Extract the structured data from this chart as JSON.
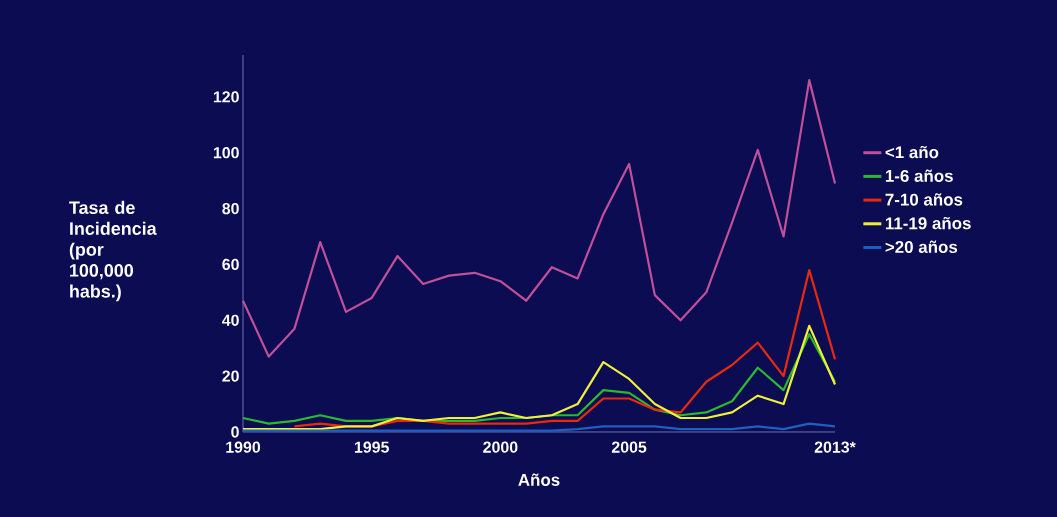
{
  "chart_data": {
    "type": "line",
    "xlabel": "Años",
    "ylabel": "Tasa de Incidencia (por 100,000 habs.)",
    "x": [
      1990,
      1991,
      1992,
      1993,
      1994,
      1995,
      1996,
      1997,
      1998,
      1999,
      2000,
      2001,
      2002,
      2003,
      2004,
      2005,
      2006,
      2007,
      2008,
      2009,
      2010,
      2011,
      2012,
      2013
    ],
    "series": [
      {
        "name": "<1 año",
        "color": "#c0509a",
        "values": [
          47,
          27,
          37,
          68,
          43,
          48,
          63,
          53,
          56,
          57,
          54,
          47,
          59,
          55,
          78,
          96,
          49,
          40,
          50,
          75,
          101,
          70,
          126,
          89
        ]
      },
      {
        "name": "1-6 años",
        "color": "#2db82d",
        "values": [
          5,
          3,
          4,
          6,
          4,
          4,
          5,
          4,
          4,
          4,
          5,
          5,
          6,
          6,
          15,
          14,
          8,
          6,
          7,
          11,
          23,
          15,
          35,
          18
        ]
      },
      {
        "name": "7-10 años",
        "color": "#e82a0c",
        "values": [
          null,
          null,
          2,
          3,
          2,
          2,
          4,
          4,
          3,
          3,
          3,
          3,
          4,
          4,
          12,
          12,
          8,
          7,
          18,
          24,
          32,
          20,
          58,
          26
        ]
      },
      {
        "name": "11-19 años",
        "color": "#f0f03c",
        "values": [
          1,
          1,
          1,
          1,
          2,
          2,
          5,
          4,
          5,
          5,
          7,
          5,
          6,
          10,
          25,
          19,
          10,
          5,
          5,
          7,
          13,
          10,
          38,
          17
        ]
      },
      {
        "name": ">20 años",
        "color": "#1f5fbf",
        "values": [
          0.5,
          0.5,
          0.5,
          0.5,
          0.5,
          0.5,
          0.5,
          0.5,
          0.5,
          0.5,
          0.5,
          0.5,
          0.5,
          1,
          2,
          2,
          2,
          1,
          1,
          1,
          2,
          1,
          3,
          2
        ]
      }
    ],
    "xlim": [
      1990,
      2013
    ],
    "xticks": [
      1990,
      1995,
      2000,
      2005,
      {
        "value": 2013,
        "label": "2013*"
      }
    ],
    "ylim": [
      0,
      135
    ],
    "yticks": [
      0,
      20,
      40,
      60,
      80,
      100,
      120
    ],
    "grid": false,
    "legend": "right",
    "marker": "none",
    "line_style": "solid"
  }
}
